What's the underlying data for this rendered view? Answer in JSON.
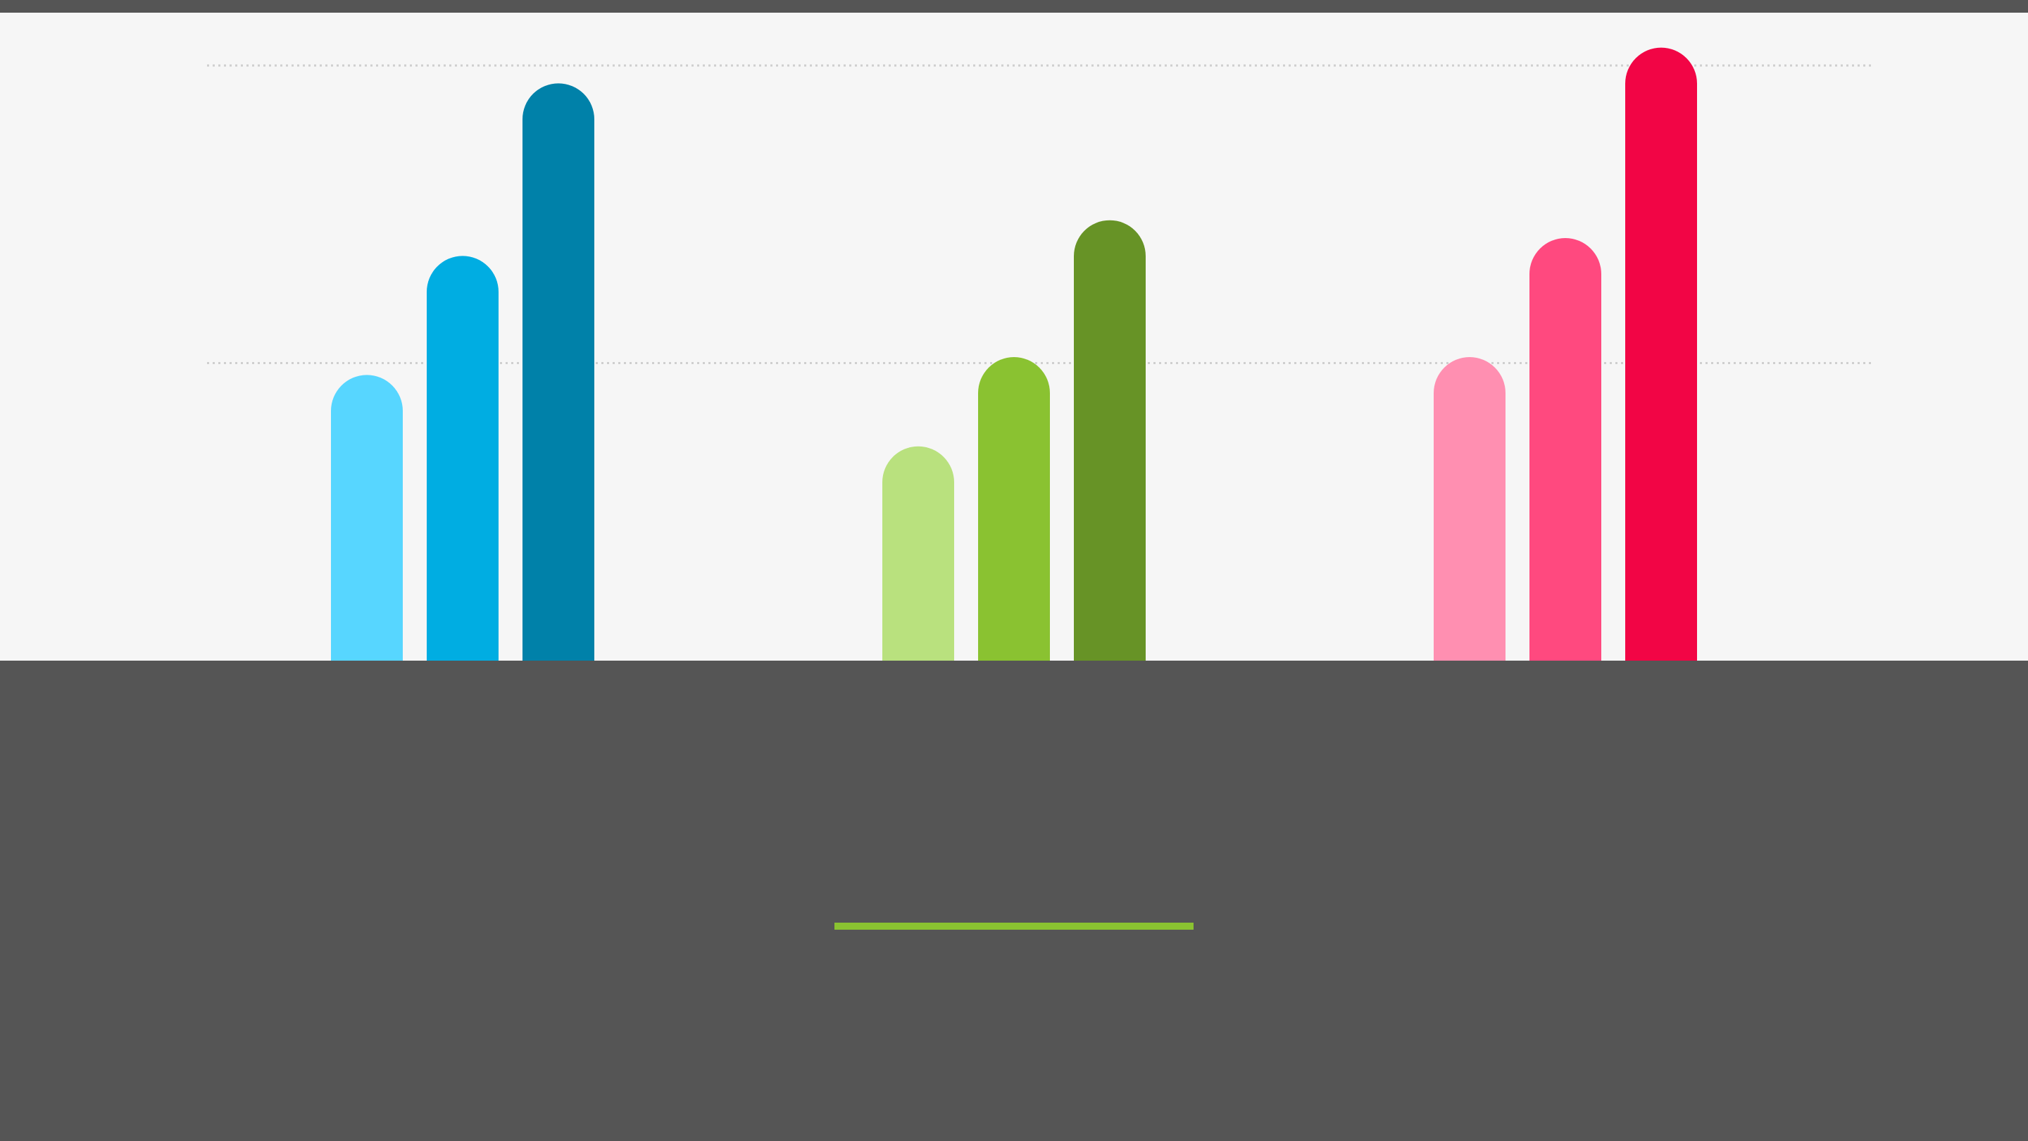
{
  "chart_data": {
    "type": "bar",
    "style": "rounded-top grouped bars, three shades per group",
    "categories": [
      "",
      "",
      ""
    ],
    "series_per_group": 3,
    "values": [
      [
        48,
        68,
        97
      ],
      [
        36,
        51,
        74
      ],
      [
        51,
        71,
        103
      ]
    ],
    "ylim": [
      0,
      112
    ],
    "gridlines": [
      50,
      100
    ],
    "grid": true,
    "group_colors": [
      [
        "#57d6ff",
        "#00ade2",
        "#0081a9"
      ],
      [
        "#b9e17e",
        "#8ac231",
        "#679326"
      ],
      [
        "#ff8fb1",
        "#ff497f",
        "#f20545"
      ]
    ],
    "title": "",
    "xlabel": "",
    "ylabel": ""
  },
  "colors": {
    "background_dark": "#555555",
    "chart_panel": "#f6f6f6",
    "accent_rule": "#8ac231",
    "gridline": "#cfcfcf"
  }
}
